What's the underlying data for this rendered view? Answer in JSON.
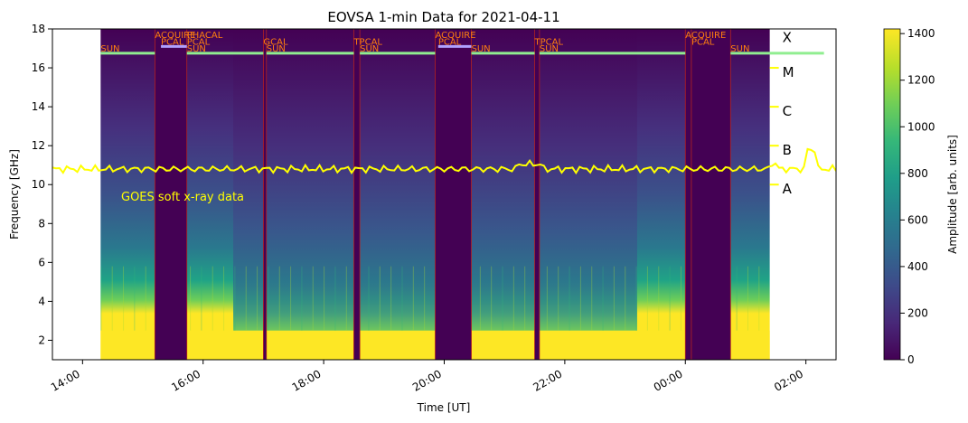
{
  "chart_data": {
    "type": "heatmap",
    "title": "EOVSA 1-min Data for 2021-04-11",
    "xlabel": "Time [UT]",
    "ylabel": "Frequency [GHz]",
    "x_range_hours": [
      13.5,
      26.5
    ],
    "ylim": [
      1,
      18
    ],
    "x_ticks": [
      {
        "hour": 14,
        "label": "14:00"
      },
      {
        "hour": 16,
        "label": "16:00"
      },
      {
        "hour": 18,
        "label": "18:00"
      },
      {
        "hour": 20,
        "label": "20:00"
      },
      {
        "hour": 22,
        "label": "22:00"
      },
      {
        "hour": 24,
        "label": "00:00"
      },
      {
        "hour": 26,
        "label": "02:00"
      }
    ],
    "y_ticks": [
      2,
      4,
      6,
      8,
      10,
      12,
      14,
      16,
      18
    ],
    "colorbar": {
      "label": "Amplitude [arb. units]",
      "range": [
        0,
        1420
      ],
      "ticks": [
        0,
        200,
        400,
        600,
        800,
        1000,
        1200,
        1400
      ],
      "colormap": [
        "#440154",
        "#482878",
        "#3e4989",
        "#31688e",
        "#26828e",
        "#1f9e89",
        "#35b779",
        "#6ece58",
        "#b5de2b",
        "#fde725"
      ]
    },
    "data_coverage_hours": [
      14.3,
      25.4
    ],
    "gaps": [
      {
        "start": 15.2,
        "end": 15.73
      },
      {
        "start": 17.0,
        "end": 17.05
      },
      {
        "start": 18.5,
        "end": 18.6
      },
      {
        "start": 19.85,
        "end": 20.45
      },
      {
        "start": 21.5,
        "end": 21.58
      },
      {
        "start": 24.0,
        "end": 24.1
      },
      {
        "start": 24.1,
        "end": 24.75
      }
    ],
    "scan_labels": [
      {
        "text": "SUN",
        "hour": 14.3,
        "level": 0
      },
      {
        "text": "ACQUIRE",
        "hour": 15.2,
        "level": 2
      },
      {
        "text": "PCAL",
        "hour": 15.3,
        "level": 1
      },
      {
        "text": "PHACAL",
        "hour": 15.73,
        "level": 2
      },
      {
        "text": "PCAL",
        "hour": 15.73,
        "level": 1
      },
      {
        "text": "SUN",
        "hour": 15.73,
        "level": 0
      },
      {
        "text": "GCAL",
        "hour": 17.0,
        "level": 1
      },
      {
        "text": "SUN",
        "hour": 17.05,
        "level": 0
      },
      {
        "text": "TPCAL",
        "hour": 18.5,
        "level": 1
      },
      {
        "text": "SUN",
        "hour": 18.6,
        "level": 0
      },
      {
        "text": "ACQUIRE",
        "hour": 19.85,
        "level": 2
      },
      {
        "text": "PCAL",
        "hour": 19.9,
        "level": 1
      },
      {
        "text": "SUN",
        "hour": 20.45,
        "level": 0
      },
      {
        "text": "TPCAL",
        "hour": 21.5,
        "level": 1
      },
      {
        "text": "SUN",
        "hour": 21.58,
        "level": 0
      },
      {
        "text": "ACQUIRE",
        "hour": 24.0,
        "level": 2
      },
      {
        "text": "PCAL",
        "hour": 24.1,
        "level": 1
      },
      {
        "text": "SUN",
        "hour": 24.75,
        "level": 0
      }
    ],
    "goes": {
      "label": "GOES soft x-ray data",
      "class_labels": [
        "X",
        "M",
        "C",
        "B",
        "A"
      ],
      "class_levels_ghz": [
        17.8,
        16.0,
        14.0,
        12.0,
        10.0
      ],
      "level_ghz": 10.8
    },
    "colors": {
      "scan_text": "#ff7f0e",
      "goes_line": "#ffff00",
      "sun_bar": "#90ee90",
      "pcal_bar": "#b0a0ff",
      "gap_line": "#b22222"
    }
  }
}
